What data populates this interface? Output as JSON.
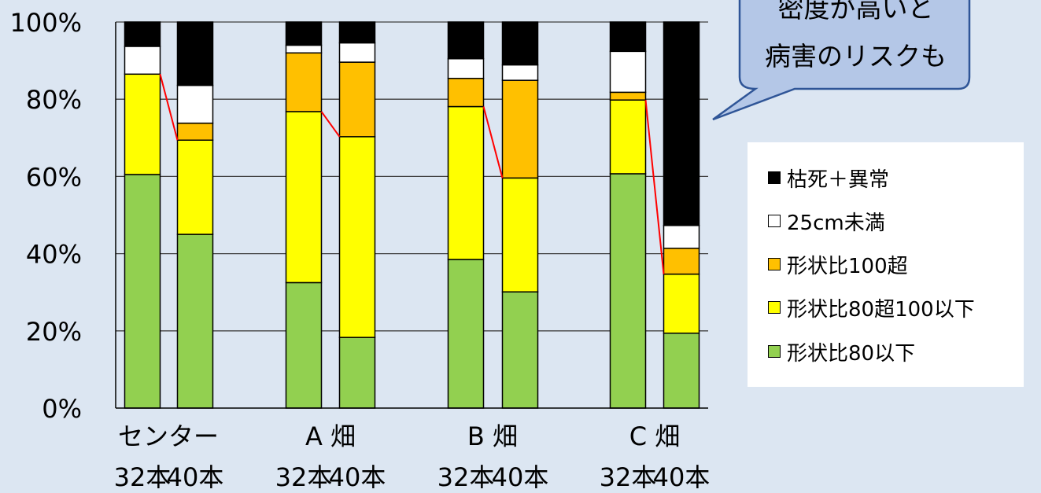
{
  "chart_data": {
    "type": "bar",
    "stacked": true,
    "percent": true,
    "ylim": [
      0,
      100
    ],
    "yticks": [
      "0%",
      "20%",
      "40%",
      "60%",
      "80%",
      "100%"
    ],
    "grid": true,
    "legend_position": "right",
    "groups": [
      "センター",
      "A 畑",
      "B 畑",
      "C 畑"
    ],
    "subcategories": [
      "32本",
      "40本"
    ],
    "bars": [
      {
        "group": "センター",
        "sub": "32本",
        "values": [
          60.5,
          26.0,
          0,
          7.2,
          6.3
        ]
      },
      {
        "group": "センター",
        "sub": "40本",
        "values": [
          45.0,
          24.4,
          4.4,
          9.8,
          16.4
        ]
      },
      {
        "group": "A 畑",
        "sub": "32本",
        "values": [
          32.5,
          44.3,
          15.2,
          2.0,
          6.0
        ]
      },
      {
        "group": "A 畑",
        "sub": "40本",
        "values": [
          18.3,
          52.0,
          19.3,
          5.0,
          5.4
        ]
      },
      {
        "group": "A 畑",
        "sub": "32本",
        "values": [
          0,
          0,
          0,
          0,
          0
        ],
        "hidden": true
      },
      {
        "group": "B 畑",
        "sub": "32本",
        "values": [
          38.5,
          39.6,
          7.3,
          5.1,
          9.5
        ]
      },
      {
        "group": "B 畑",
        "sub": "40本",
        "values": [
          30.1,
          29.5,
          25.3,
          4.0,
          11.1
        ]
      },
      {
        "group": "C 畑",
        "sub": "32本",
        "values": [
          60.7,
          19.1,
          2.0,
          10.6,
          7.6
        ]
      },
      {
        "group": "C 畑",
        "sub": "40本",
        "values": [
          19.4,
          15.3,
          6.7,
          5.9,
          52.7
        ]
      }
    ],
    "series": [
      {
        "name": "形状比80以下",
        "color": "#92d050"
      },
      {
        "name": "形状比80超100以下",
        "color": "#ffff00"
      },
      {
        "name": "形状比100超",
        "color": "#ffc000"
      },
      {
        "name": "25cm未満",
        "color": "#ffffff"
      },
      {
        "name": "枯死＋異常",
        "color": "#000000"
      }
    ],
    "connector_color": "#ff0000"
  },
  "legend": {
    "items": [
      {
        "label": "枯死＋異常",
        "color": "#000000"
      },
      {
        "label": "25cm未満",
        "color": "#ffffff"
      },
      {
        "label": "形状比100超",
        "color": "#ffc000"
      },
      {
        "label": "形状比80超100以下",
        "color": "#ffff00"
      },
      {
        "label": "形状比80以下",
        "color": "#92d050"
      }
    ]
  },
  "callout": {
    "lines": [
      "密度が高いと",
      "病害のリスクも"
    ],
    "fill": "#b4c7e7",
    "border": "#2f5597"
  }
}
